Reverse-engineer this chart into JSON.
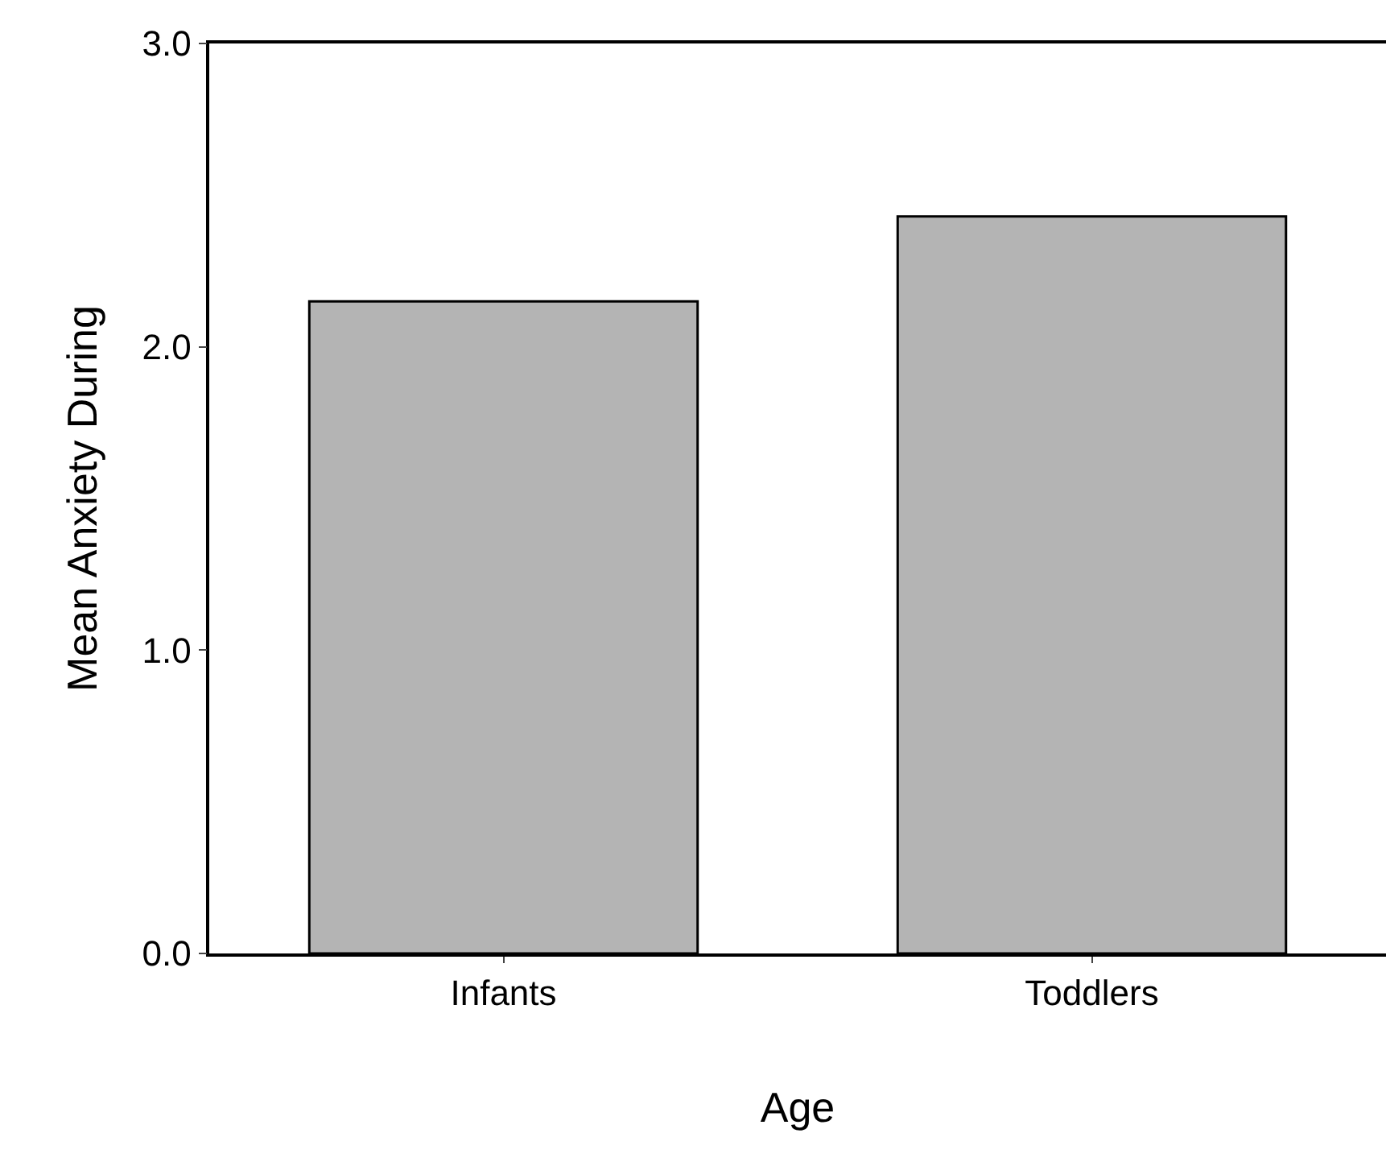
{
  "chart_data": {
    "type": "bar",
    "xlabel": "Age",
    "ylabel": "Mean Anxiety During",
    "categories": [
      "Infants",
      "Toddlers"
    ],
    "values": [
      2.15,
      2.43
    ],
    "color": "#b4b4b4",
    "ylim": [
      0,
      3
    ],
    "yticks": [
      {
        "value": 0,
        "label": "0.0"
      },
      {
        "value": 1,
        "label": "1.0"
      },
      {
        "value": 2,
        "label": "2.0"
      },
      {
        "value": 3,
        "label": "3.0"
      }
    ],
    "grid": false,
    "legend": false
  }
}
